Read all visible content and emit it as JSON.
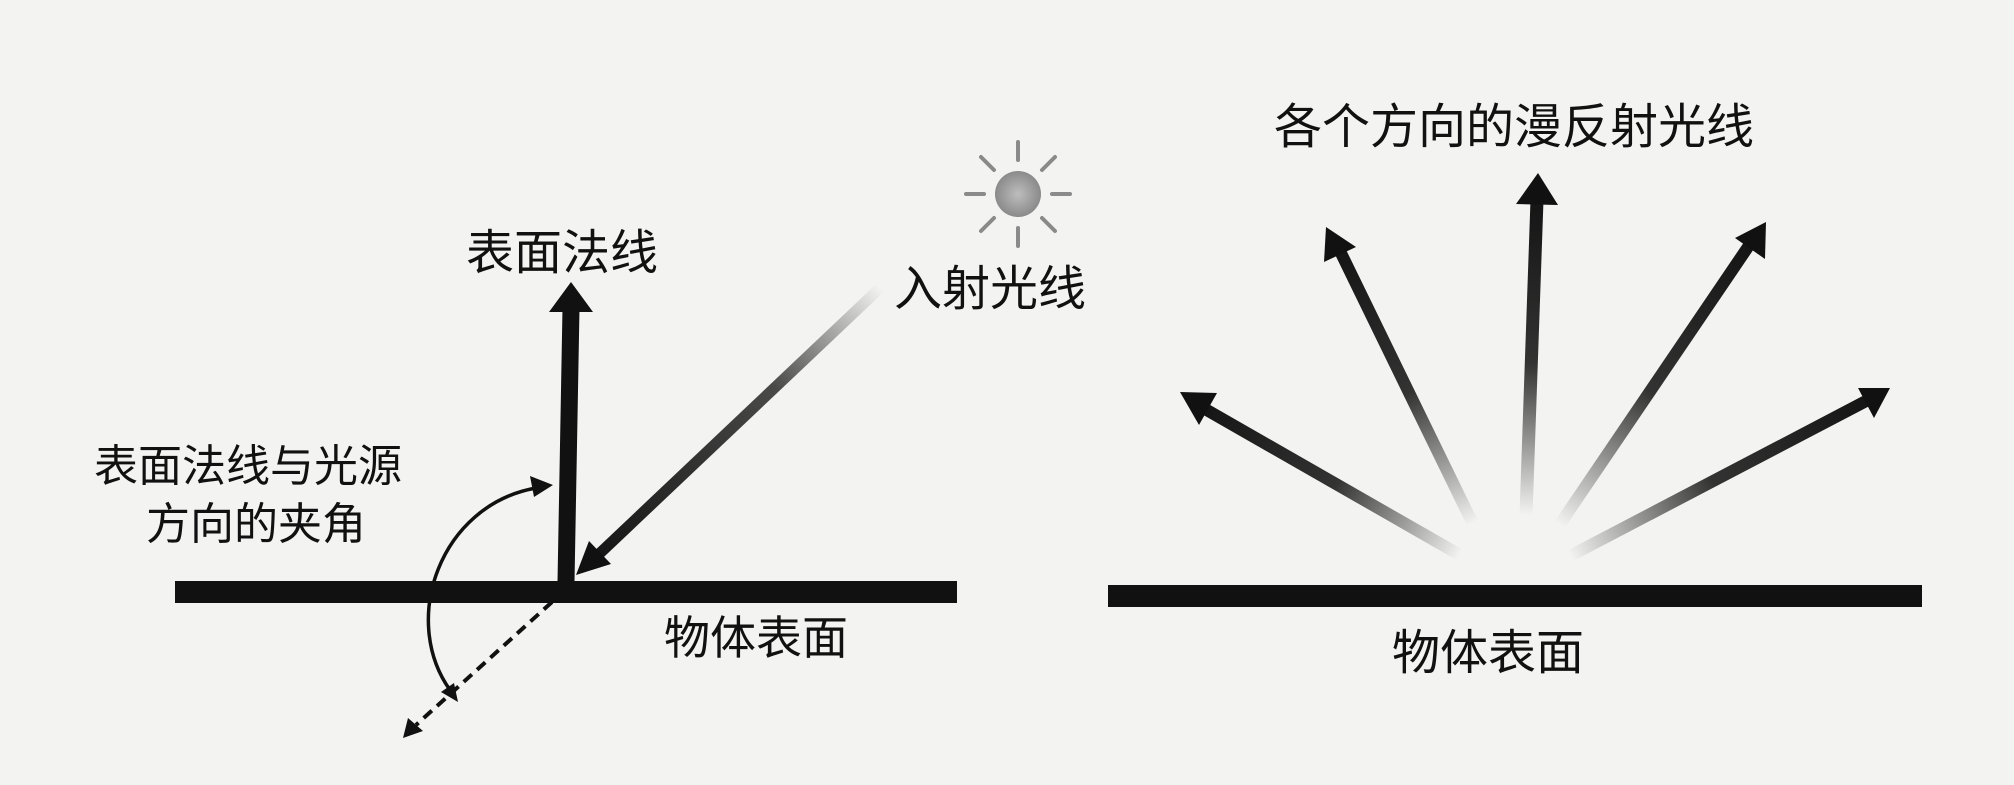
{
  "left_diagram": {
    "normal_label": "表面法线",
    "incident_label": "入射光线",
    "angle_label_line1": "表面法线与光源",
    "angle_label_line2": "方向的夹角",
    "surface_label": "物体表面",
    "light_source_icon": "sun-icon"
  },
  "right_diagram": {
    "title": "各个方向的漫反射光线",
    "surface_label": "物体表面"
  },
  "colors": {
    "ink": "#111111",
    "background": "#f3f3f1",
    "sun": "#9a9a9a"
  }
}
